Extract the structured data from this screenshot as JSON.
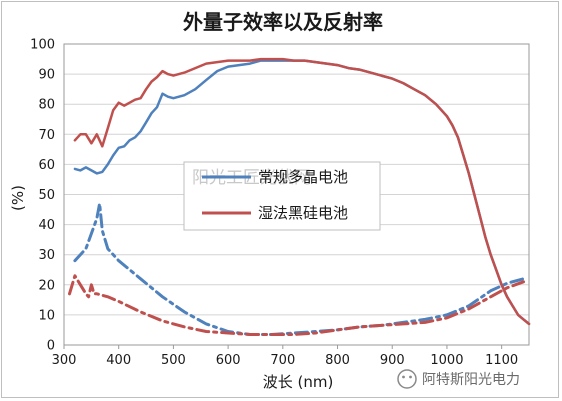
{
  "chart_data": {
    "type": "line",
    "title": "外量子效率以及反射率",
    "xlabel": "波长 (nm)",
    "ylabel": "(%)",
    "xlim": [
      300,
      1150
    ],
    "ylim": [
      0,
      100
    ],
    "x_ticks": [
      300,
      400,
      500,
      600,
      700,
      800,
      900,
      1000,
      1100
    ],
    "y_ticks": [
      0,
      10,
      20,
      30,
      40,
      50,
      60,
      70,
      80,
      90,
      100
    ],
    "grid": "horizontal",
    "legend_position": "center",
    "series": [
      {
        "name": "常规多晶电池",
        "color": "#4f81bd",
        "metric": "external quantum efficiency",
        "style": "solid",
        "x": [
          320,
          330,
          340,
          350,
          360,
          370,
          380,
          390,
          400,
          410,
          420,
          430,
          440,
          450,
          460,
          470,
          480,
          490,
          500,
          520,
          540,
          560,
          580,
          600,
          620,
          640,
          660,
          680,
          700,
          720,
          740,
          760,
          780,
          800,
          820,
          840,
          860,
          880,
          900,
          920,
          940,
          960,
          980,
          1000,
          1010,
          1020,
          1030,
          1040,
          1050,
          1060,
          1070,
          1080,
          1090,
          1100,
          1110,
          1120,
          1130,
          1140,
          1150
        ],
        "y": [
          58.5,
          58,
          59,
          58,
          57,
          57.5,
          60,
          63,
          65.5,
          66,
          68,
          69,
          71,
          74,
          77,
          79,
          83.5,
          82.5,
          82,
          83,
          85,
          88,
          91,
          92.5,
          93,
          93.5,
          94.5,
          94.5,
          94.5,
          94.5,
          94.5,
          94,
          93.5,
          93,
          92,
          91.5,
          90.5,
          89.5,
          88.5,
          87,
          85,
          83,
          80,
          76,
          73,
          69,
          63,
          57,
          50,
          43,
          36,
          30,
          25,
          20,
          16,
          13,
          10,
          8.5,
          7
        ]
      },
      {
        "name": "湿法黑硅电池",
        "color": "#c0504d",
        "metric": "external quantum efficiency",
        "style": "solid",
        "x": [
          320,
          330,
          340,
          350,
          360,
          370,
          380,
          390,
          400,
          410,
          420,
          430,
          440,
          450,
          460,
          470,
          480,
          490,
          500,
          520,
          540,
          560,
          580,
          600,
          620,
          640,
          660,
          680,
          700,
          720,
          740,
          760,
          780,
          800,
          820,
          840,
          860,
          880,
          900,
          920,
          940,
          960,
          980,
          1000,
          1010,
          1020,
          1030,
          1040,
          1050,
          1060,
          1070,
          1080,
          1090,
          1100,
          1110,
          1120,
          1130,
          1140,
          1150
        ],
        "y": [
          68,
          70,
          70,
          67,
          70,
          66,
          72,
          78,
          80.5,
          79.5,
          80.5,
          81.5,
          82,
          85,
          87.5,
          89,
          91,
          90,
          89.5,
          90.5,
          92,
          93.5,
          94,
          94.5,
          94.5,
          94.5,
          95,
          95,
          95,
          94.5,
          94.5,
          94,
          93.5,
          93,
          92,
          91.5,
          90.5,
          89.5,
          88.5,
          87,
          85,
          83,
          80,
          76,
          73,
          69,
          63,
          57,
          50,
          43,
          36,
          30,
          25,
          20,
          16,
          13,
          10,
          8.5,
          7
        ]
      },
      {
        "name": "常规多晶电池",
        "color": "#4f81bd",
        "metric": "reflectance",
        "style": "dash-dot",
        "x": [
          320,
          340,
          360,
          365,
          370,
          380,
          400,
          440,
          480,
          520,
          560,
          600,
          640,
          680,
          720,
          760,
          800,
          840,
          880,
          920,
          960,
          1000,
          1040,
          1080,
          1110,
          1140
        ],
        "y": [
          28,
          32,
          42,
          47,
          38,
          32,
          28,
          22,
          16,
          11,
          7,
          4.5,
          3.5,
          3.5,
          4,
          4.5,
          5,
          6,
          6.5,
          7.5,
          8.5,
          10,
          13,
          18,
          20.5,
          22
        ]
      },
      {
        "name": "湿法黑硅电池",
        "color": "#c0504d",
        "metric": "reflectance",
        "style": "dash-dot",
        "x": [
          310,
          320,
          330,
          340,
          345,
          350,
          355,
          360,
          380,
          400,
          440,
          480,
          520,
          560,
          600,
          640,
          680,
          720,
          760,
          800,
          840,
          880,
          920,
          960,
          1000,
          1040,
          1080,
          1110,
          1140
        ],
        "y": [
          17,
          23,
          20,
          17,
          16,
          20,
          17,
          17,
          16,
          14.5,
          11,
          8,
          6,
          4.5,
          4,
          3.5,
          3.5,
          3.5,
          4,
          5,
          6,
          6.5,
          7,
          7.5,
          9,
          12,
          16,
          19,
          21
        ]
      }
    ]
  },
  "watermark": "阳光工匠光伏网",
  "footer": {
    "account": "阿特斯阳光电力"
  }
}
